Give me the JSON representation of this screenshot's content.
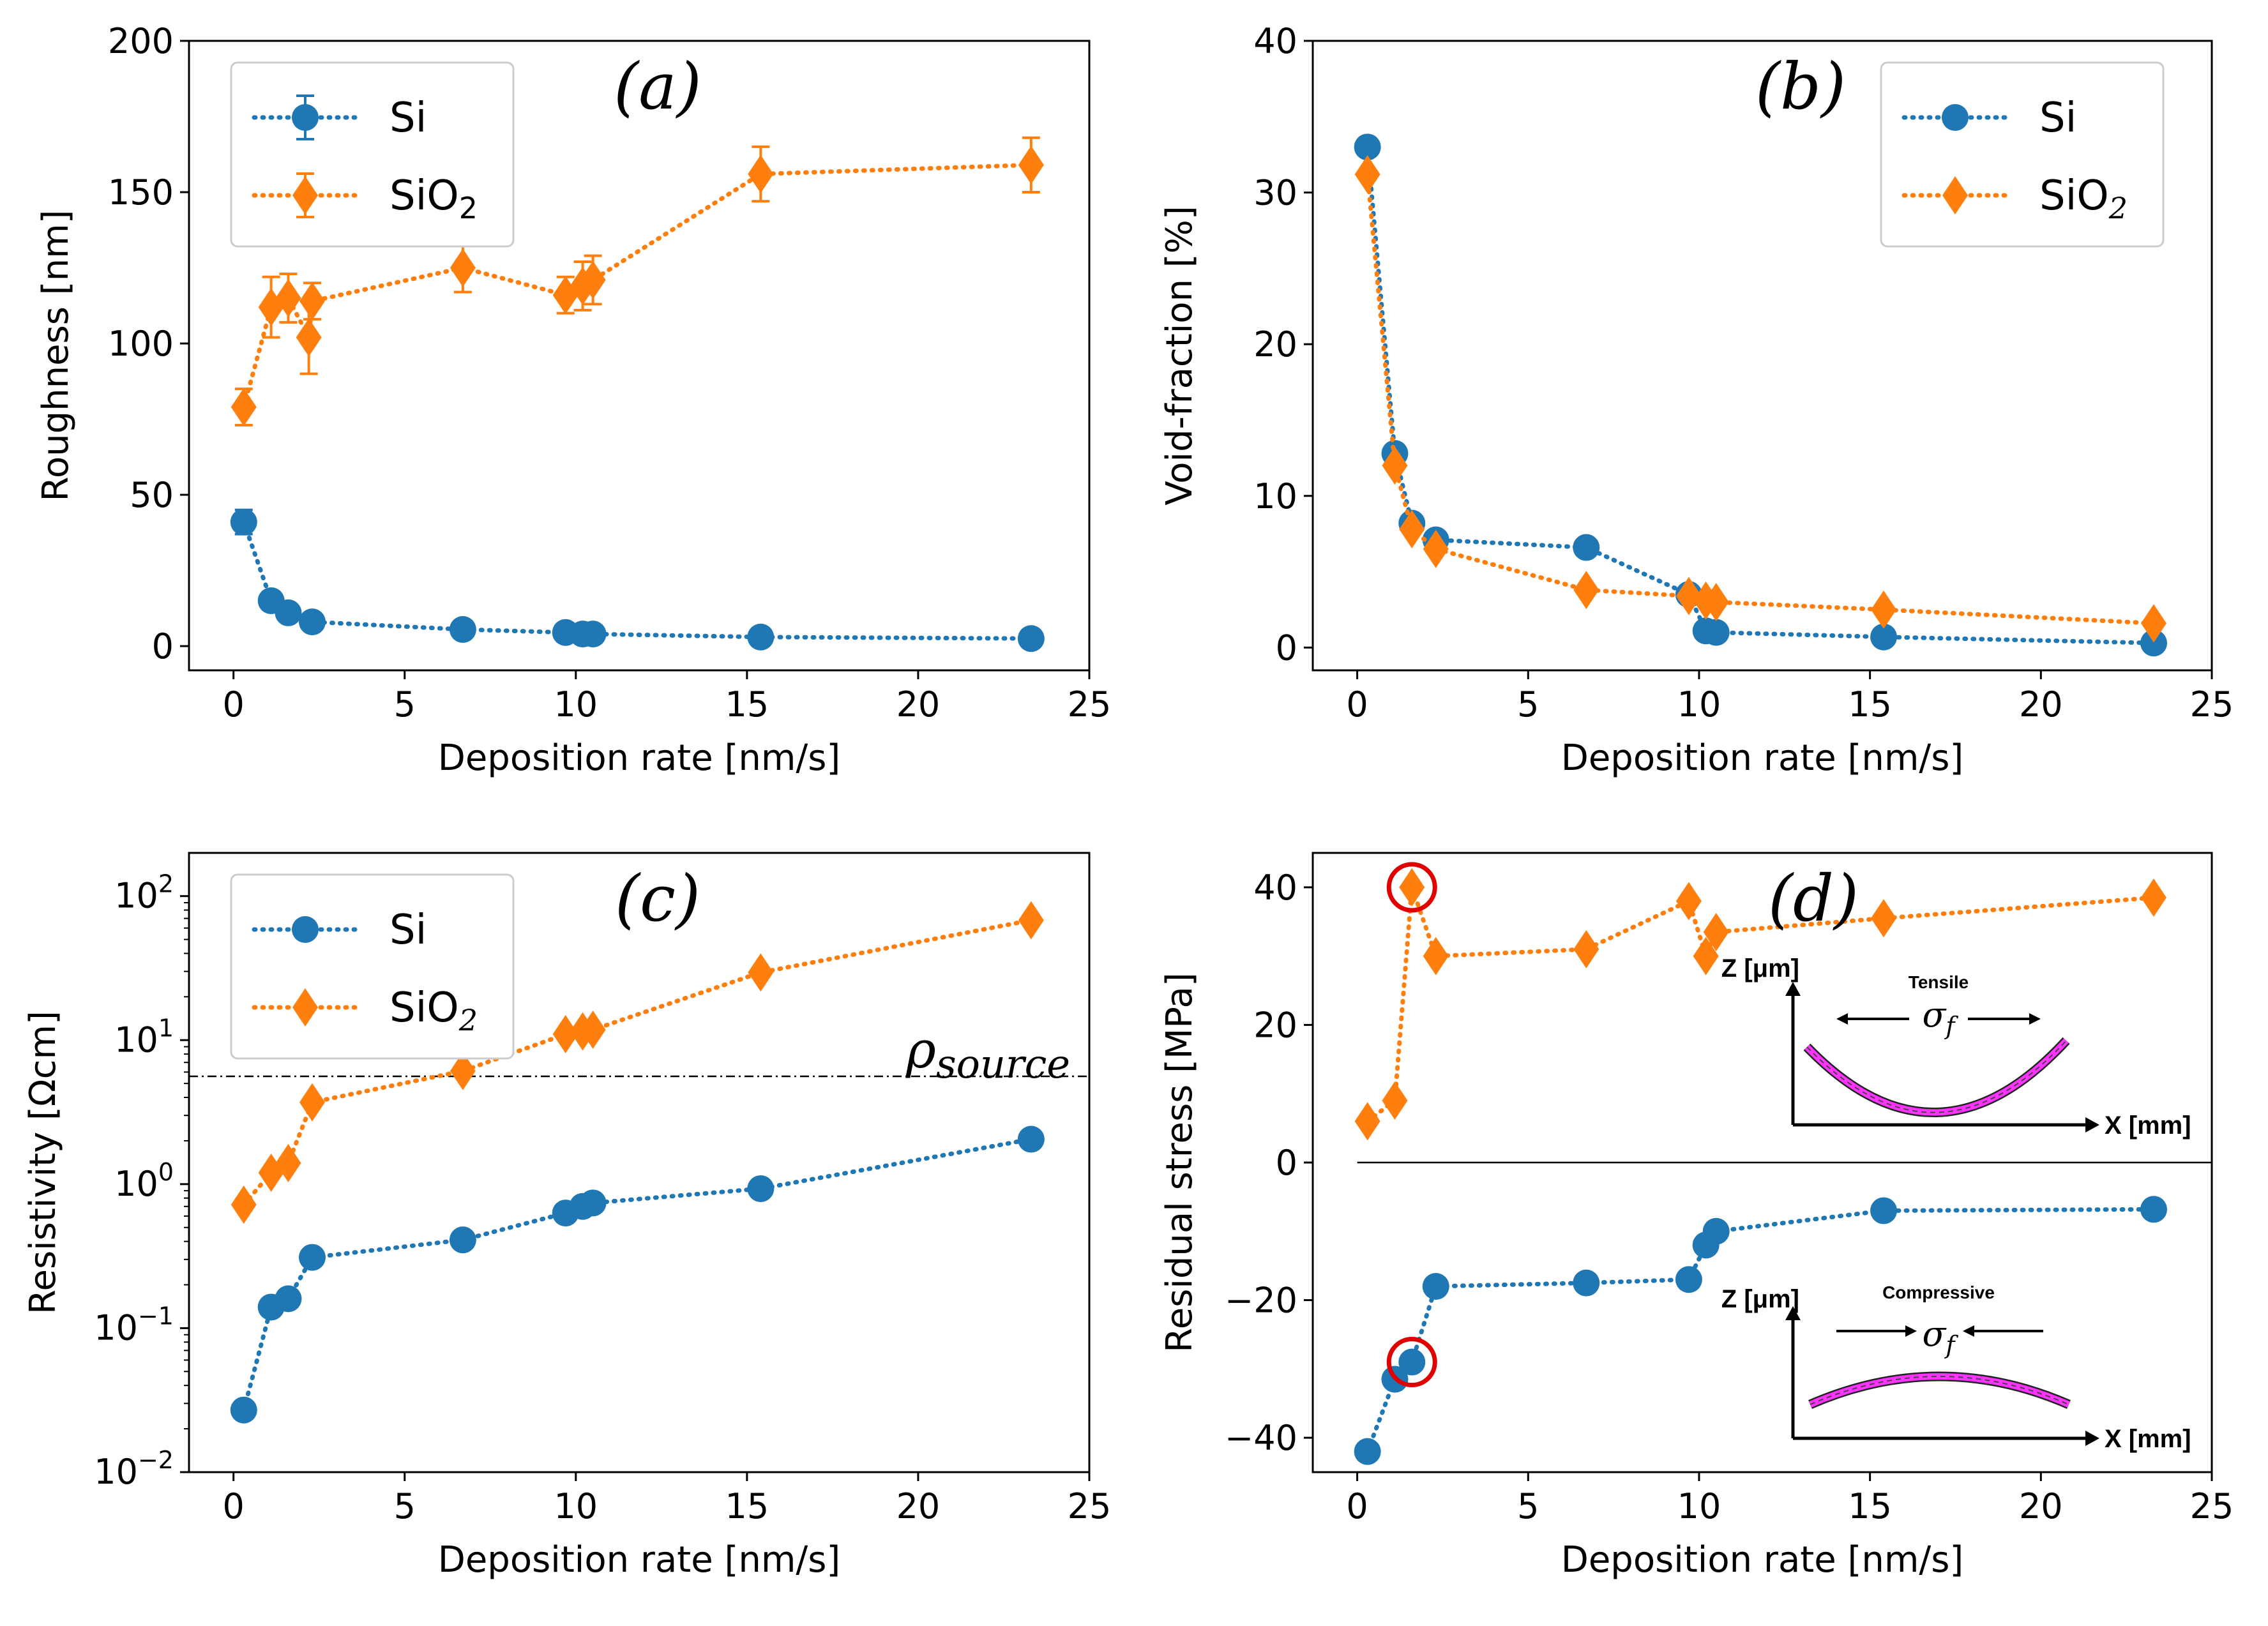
{
  "colors": {
    "si": "#1f77b4",
    "sio2": "#ff7f0e",
    "highlight": "#e00000",
    "inset_curve": "#ff33ff"
  },
  "chart_data": [
    {
      "type": "scatter",
      "panel": "(a)",
      "xlabel": "Deposition rate [nm/s]",
      "ylabel": "Roughness [nm]",
      "xlim": [
        -1.3,
        25
      ],
      "ylim": [
        -8,
        200
      ],
      "xticks": [
        0,
        5,
        10,
        15,
        20,
        25
      ],
      "yticks": [
        0,
        50,
        100,
        150,
        200
      ],
      "xtick_labels": [
        "0",
        "5",
        "10",
        "15",
        "20",
        "25"
      ],
      "ytick_labels": [
        "0",
        "50",
        "100",
        "150",
        "200"
      ],
      "legend_position": "top-left",
      "error_bars": true,
      "series": [
        {
          "name": "Si",
          "sub": "",
          "marker": "circle",
          "color": "#1f77b4",
          "x": [
            0.3,
            1.1,
            1.6,
            2.3,
            6.7,
            9.7,
            10.2,
            10.5,
            15.4,
            23.3
          ],
          "y": [
            41,
            15,
            11,
            8,
            5.5,
            4.5,
            4,
            4,
            3,
            2.5
          ],
          "err": [
            4,
            3,
            2,
            2,
            1,
            1,
            1,
            1,
            0.5,
            0.5
          ]
        },
        {
          "name": "SiO",
          "sub": "2",
          "marker": "diamond",
          "color": "#ff7f0e",
          "x": [
            0.3,
            1.1,
            1.6,
            2.2,
            2.3,
            6.7,
            9.7,
            10.2,
            10.5,
            15.4,
            23.3
          ],
          "y": [
            79,
            112,
            115,
            102,
            114,
            125,
            116,
            119,
            121,
            156,
            159
          ],
          "err": [
            6,
            10,
            8,
            12,
            6,
            8,
            6,
            8,
            8,
            9,
            9
          ]
        }
      ]
    },
    {
      "type": "line",
      "panel": "(b)",
      "xlabel": "Deposition rate [nm/s]",
      "ylabel": "Void-fraction [%]",
      "xlim": [
        -1.3,
        25
      ],
      "ylim": [
        -1.5,
        40
      ],
      "xticks": [
        0,
        5,
        10,
        15,
        20,
        25
      ],
      "yticks": [
        0,
        10,
        20,
        30,
        40
      ],
      "xtick_labels": [
        "0",
        "5",
        "10",
        "15",
        "20",
        "25"
      ],
      "ytick_labels": [
        "0",
        "10",
        "20",
        "30",
        "40"
      ],
      "legend_position": "top-right",
      "series": [
        {
          "name": "Si",
          "sub": "",
          "marker": "circle",
          "color": "#1f77b4",
          "x": [
            0.3,
            1.1,
            1.6,
            2.3,
            6.7,
            9.7,
            10.2,
            10.5,
            15.4,
            23.3
          ],
          "y": [
            33,
            12.8,
            8.2,
            7.1,
            6.6,
            3.5,
            1.1,
            1,
            0.7,
            0.3
          ]
        },
        {
          "name": "SiO",
          "sub": "2",
          "marker": "diamond",
          "color": "#ff7f0e",
          "x": [
            0.3,
            1.1,
            1.6,
            2.3,
            6.7,
            9.7,
            10.2,
            10.5,
            15.4,
            23.3
          ],
          "y": [
            31.2,
            12,
            7.8,
            6.5,
            3.8,
            3.4,
            3.1,
            3,
            2.5,
            1.6
          ]
        }
      ]
    },
    {
      "type": "line",
      "panel": "(c)",
      "scale_y": "log",
      "xlabel": "Deposition rate [nm/s]",
      "ylabel": "Resistivity [Ωcm]",
      "xlim": [
        -1.3,
        25
      ],
      "ylim_log10": [
        -2,
        2.3
      ],
      "xticks": [
        0,
        5,
        10,
        15,
        20,
        25
      ],
      "yticks_log10": [
        -2,
        -1,
        0,
        1,
        2
      ],
      "xtick_labels": [
        "0",
        "5",
        "10",
        "15",
        "20",
        "25"
      ],
      "ytick_base": "10",
      "ytick_exps": [
        "−2",
        "−1",
        "0",
        "1",
        "2"
      ],
      "legend_position": "top-left",
      "hline": {
        "y": 5.6,
        "label": "ρ",
        "label_sub": "source"
      },
      "series": [
        {
          "name": "Si",
          "sub": "",
          "marker": "circle",
          "color": "#1f77b4",
          "x": [
            0.3,
            1.1,
            1.6,
            2.3,
            6.7,
            9.7,
            10.2,
            10.5,
            15.4,
            23.3
          ],
          "y": [
            0.027,
            0.14,
            0.16,
            0.31,
            0.41,
            0.63,
            0.7,
            0.74,
            0.93,
            2.05
          ]
        },
        {
          "name": "SiO",
          "sub": "2",
          "marker": "diamond",
          "color": "#ff7f0e",
          "x": [
            0.3,
            1.1,
            1.6,
            2.3,
            6.7,
            9.7,
            10.2,
            10.5,
            15.4,
            23.3
          ],
          "y": [
            0.72,
            1.2,
            1.4,
            3.7,
            6.1,
            11,
            11.5,
            11.8,
            29.5,
            68
          ]
        }
      ]
    },
    {
      "type": "line",
      "panel": "(d)",
      "xlabel": "Deposition rate [nm/s]",
      "ylabel": "Residual stress [MPa]",
      "xlim": [
        -1.3,
        25
      ],
      "ylim": [
        -45,
        45
      ],
      "xticks": [
        0,
        5,
        10,
        15,
        20,
        25
      ],
      "yticks": [
        -40,
        -20,
        0,
        20,
        40
      ],
      "xtick_labels": [
        "0",
        "5",
        "10",
        "15",
        "20",
        "25"
      ],
      "ytick_labels": [
        "−40",
        "−20",
        "0",
        "20",
        "40"
      ],
      "zero_line": true,
      "highlights": [
        {
          "series": "SiO2",
          "x": 1.6,
          "y": 40
        },
        {
          "series": "Si",
          "x": 1.6,
          "y": -29
        }
      ],
      "series": [
        {
          "name": "Si",
          "sub": "",
          "marker": "circle",
          "color": "#1f77b4",
          "x": [
            0.3,
            1.1,
            1.6,
            2.3,
            6.7,
            9.7,
            10.2,
            10.5,
            15.4,
            23.3
          ],
          "y": [
            -42,
            -31.5,
            -29,
            -18,
            -17.5,
            -17,
            -12,
            -10,
            -7,
            -6.8
          ]
        },
        {
          "name": "SiO",
          "sub": "2",
          "marker": "diamond",
          "color": "#ff7f0e",
          "x": [
            0.3,
            1.1,
            1.6,
            2.3,
            6.7,
            9.7,
            10.2,
            10.5,
            15.4,
            23.3
          ],
          "y": [
            6,
            9,
            40,
            30,
            31,
            38,
            30,
            33.5,
            35.5,
            38.5
          ]
        }
      ],
      "insets": [
        {
          "title": "Tensile",
          "zlabel": "Z [μm]",
          "xlabel": "X [mm]",
          "sigma": "σ",
          "sigma_sub": "f",
          "shape": "concave"
        },
        {
          "title": "Compressive",
          "zlabel": "Z [μm]",
          "xlabel": "X [mm]",
          "sigma": "σ",
          "sigma_sub": "f",
          "shape": "convex"
        }
      ]
    }
  ]
}
